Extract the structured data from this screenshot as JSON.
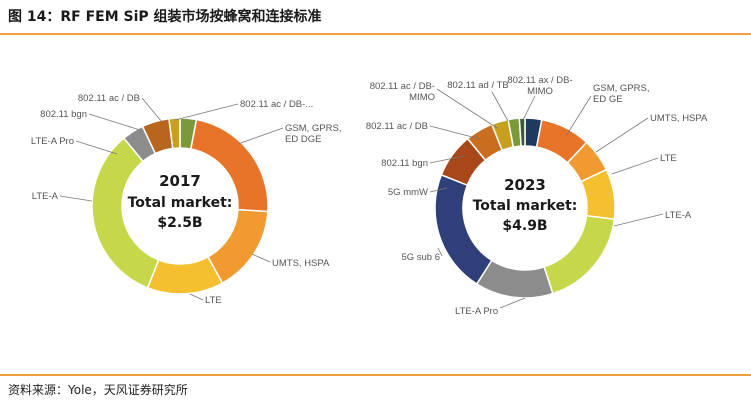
{
  "header": {
    "title": "图 14：RF FEM SiP 组装市场按蜂窝和连接标准"
  },
  "source": {
    "text": "资料来源：Yole，天风证券研究所"
  },
  "colors": {
    "rule": "#f0a040"
  },
  "chart_data": [
    {
      "type": "pie",
      "donut": true,
      "center_year": "2017",
      "center_label": "Total market:",
      "center_value": "$2.5B",
      "slices": [
        {
          "label": "802.11 ac / DB-...",
          "value": 3,
          "color": "#7a9a3a"
        },
        {
          "label": "GSM, GPRS, ED DGE",
          "value": 23,
          "color": "#e8742a"
        },
        {
          "label": "UMTS, HSPA",
          "value": 16,
          "color": "#f09a30"
        },
        {
          "label": "LTE",
          "value": 14,
          "color": "#f5c030"
        },
        {
          "label": "LTE-A",
          "value": 33,
          "color": "#c6d84a"
        },
        {
          "label": "LTE-A Pro",
          "value": 4,
          "color": "#8c8c8c"
        },
        {
          "label": "802.11 bgn",
          "value": 5,
          "color": "#b8651e"
        },
        {
          "label": "802.11 ac / DB",
          "value": 2,
          "color": "#c8a020"
        }
      ]
    },
    {
      "type": "pie",
      "donut": true,
      "center_year": "2023",
      "center_label": "Total market:",
      "center_value": "$4.9B",
      "slices": [
        {
          "label": "802.11 ax / DB-MIMO",
          "value": 3,
          "color": "#1e3a5f"
        },
        {
          "label": "GSM, GPRS, ED GE",
          "value": 9,
          "color": "#e8742a"
        },
        {
          "label": "UMTS, HSPA",
          "value": 6,
          "color": "#f09a30"
        },
        {
          "label": "LTE",
          "value": 9,
          "color": "#f5c030"
        },
        {
          "label": "LTE-A",
          "value": 18,
          "color": "#c6d84a"
        },
        {
          "label": "LTE-A Pro",
          "value": 14,
          "color": "#8c8c8c"
        },
        {
          "label": "5G sub 6",
          "value": 22,
          "color": "#2e3f7a"
        },
        {
          "label": "5G mmW",
          "value": 8,
          "color": "#a8481a"
        },
        {
          "label": "802.11 bgn",
          "value": 5,
          "color": "#c86e1e"
        },
        {
          "label": "802.11 ac / DB",
          "value": 3,
          "color": "#c8a020"
        },
        {
          "label": "802.11 ac / DB-MIMO",
          "value": 2,
          "color": "#7a9a3a"
        },
        {
          "label": "802.11 ad / TB",
          "value": 1,
          "color": "#3a5a3a"
        }
      ]
    }
  ]
}
